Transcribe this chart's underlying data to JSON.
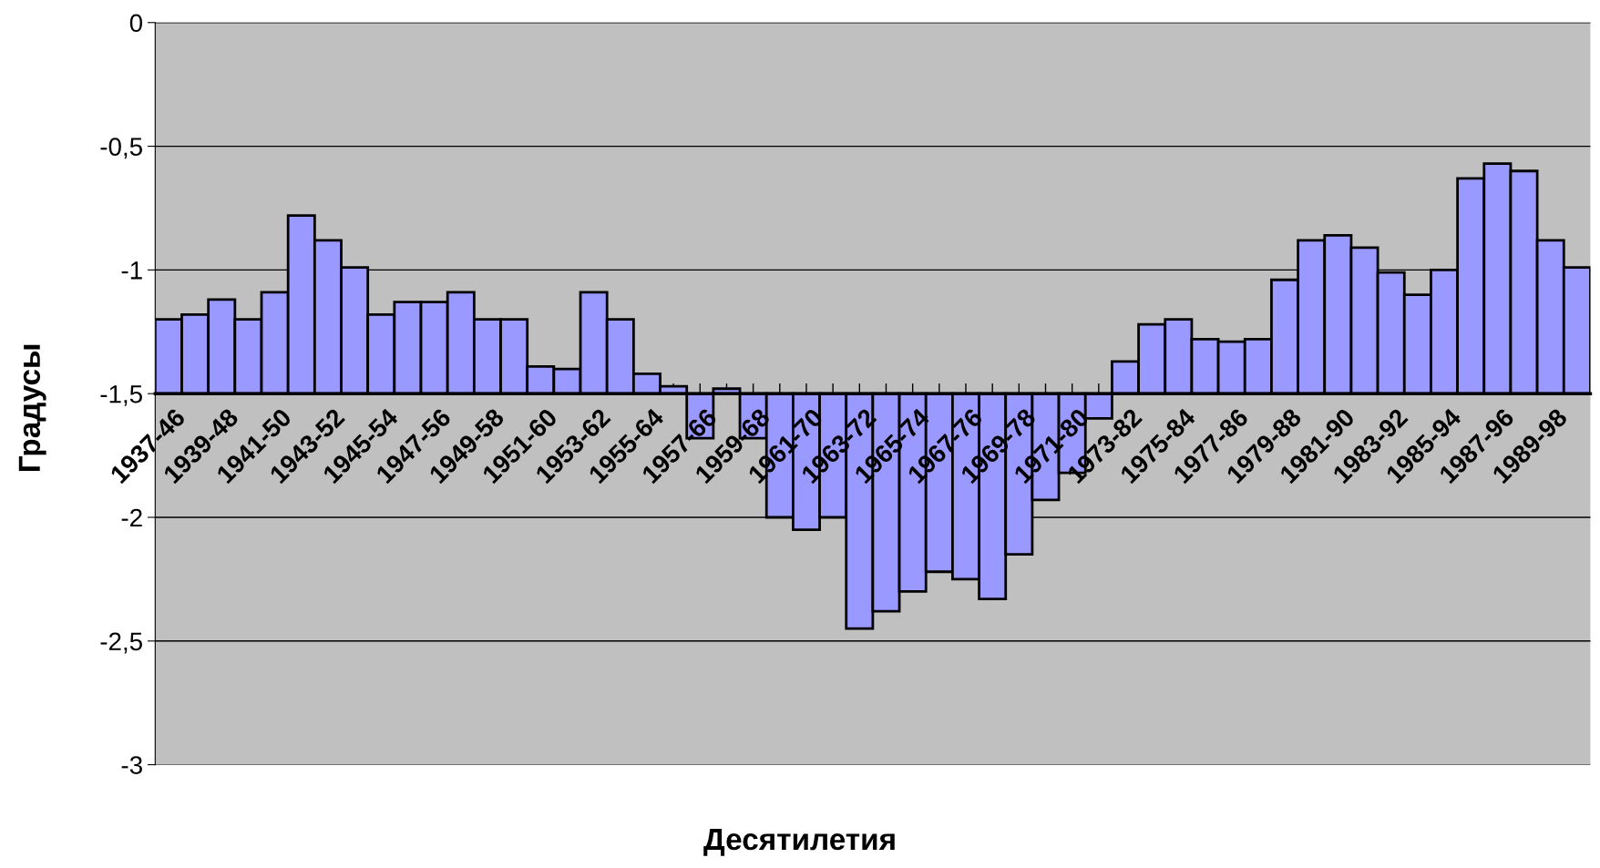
{
  "chart_data": {
    "type": "bar",
    "xlabel": "Десятилетия",
    "ylabel": "Градусы",
    "categories": [
      "1937-46",
      null,
      "1939-48",
      null,
      "1941-50",
      null,
      "1943-52",
      null,
      "1945-54",
      null,
      "1947-56",
      null,
      "1949-58",
      null,
      "1951-60",
      null,
      "1953-62",
      null,
      "1955-64",
      null,
      "1957-66",
      null,
      "1959-68",
      null,
      "1961-70",
      null,
      "1963-72",
      null,
      "1965-74",
      null,
      "1967-76",
      null,
      "1969-78",
      null,
      "1971-80",
      null,
      "1973-82",
      null,
      "1975-84",
      null,
      "1977-86",
      null,
      "1979-88",
      null,
      "1981-90",
      null,
      "1983-92",
      null,
      "1985-94",
      null,
      "1987-96",
      null,
      "1989-98",
      null
    ],
    "values": [
      0.3,
      0.32,
      0.38,
      0.3,
      0.41,
      0.72,
      0.62,
      0.51,
      0.32,
      0.37,
      0.37,
      0.41,
      0.3,
      0.3,
      0.11,
      0.1,
      0.41,
      0.3,
      0.08,
      0.03,
      -0.18,
      0.02,
      -0.18,
      -0.5,
      -0.55,
      -0.5,
      -0.95,
      -0.88,
      -0.8,
      -0.72,
      -0.75,
      -0.83,
      -0.65,
      -0.43,
      -0.32,
      -0.1,
      0.13,
      0.28,
      0.3,
      0.22,
      0.21,
      0.22,
      0.46,
      0.62,
      0.64,
      0.59,
      0.49,
      0.4,
      0.5,
      0.87,
      0.93,
      0.9,
      0.62,
      0.51
    ],
    "base": [
      -1.5,
      -1.5,
      -1.5,
      -1.5,
      -1.5,
      -1.5,
      -1.5,
      -1.5,
      -1.5,
      -1.5,
      -1.5,
      -1.5,
      -1.5,
      -1.5,
      -1.5,
      -1.5,
      -1.5,
      -1.5,
      -1.5,
      -1.5,
      -1.5,
      -1.5,
      -1.5,
      -1.5,
      -1.5,
      -1.5,
      -1.5,
      -1.5,
      -1.5,
      -1.5,
      -1.5,
      -1.5,
      -1.5,
      -1.5,
      -1.5,
      -1.5,
      -1.5,
      -1.5,
      -1.5,
      -1.5,
      -1.5,
      -1.5,
      -1.5,
      -1.5,
      -1.5,
      -1.5,
      -1.5,
      -1.5,
      -1.5,
      -1.5,
      -1.5,
      -1.5,
      -1.5,
      -1.5
    ],
    "color": "#9999ff",
    "ylim": [
      -3,
      0
    ],
    "yticks": [
      {
        "value": 0,
        "label": "0"
      },
      {
        "value": -0.5,
        "label": "-0,5"
      },
      {
        "value": -1,
        "label": "-1"
      },
      {
        "value": -1.5,
        "label": "-1,5"
      },
      {
        "value": -2,
        "label": "-2"
      },
      {
        "value": -2.5,
        "label": "-2,5"
      },
      {
        "value": -3,
        "label": "-3"
      }
    ],
    "grid": "y",
    "legend": false
  }
}
